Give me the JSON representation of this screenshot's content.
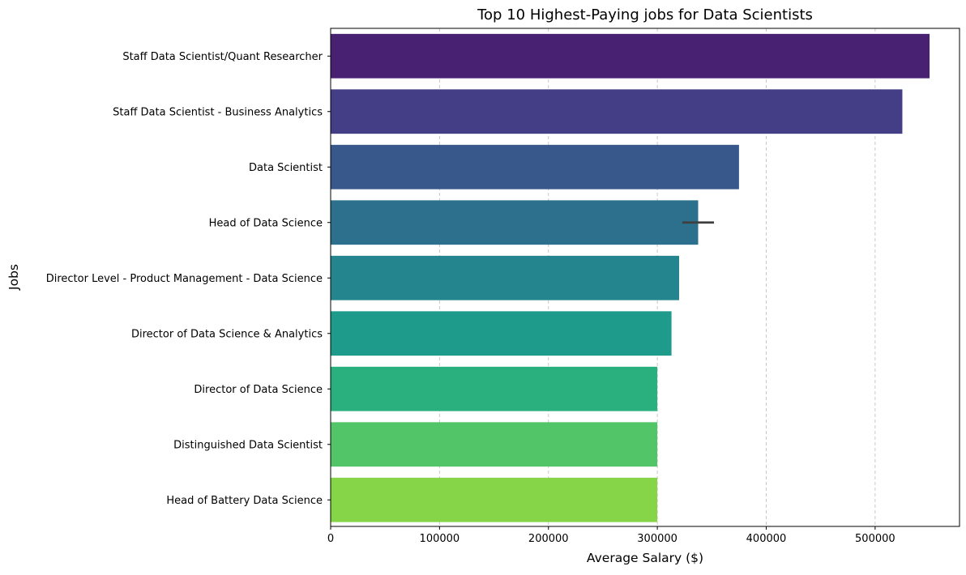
{
  "chart_data": {
    "type": "bar",
    "orientation": "horizontal",
    "title": "Top 10 Highest-Paying jobs for Data Scientists",
    "xlabel": "Average Salary ($)",
    "ylabel": "Jobs",
    "xlim": [
      0,
      577500
    ],
    "xticks": [
      0,
      100000,
      200000,
      300000,
      400000,
      500000
    ],
    "xtick_labels": [
      "0",
      "100000",
      "200000",
      "300000",
      "400000",
      "500000"
    ],
    "grid": {
      "axis": "x",
      "style": "dashed"
    },
    "categories": [
      "Staff Data Scientist/Quant Researcher",
      "Staff Data Scientist - Business Analytics",
      "Data Scientist",
      "Head of Data Science",
      "Director Level - Product Management - Data Science",
      "Director of Data Science & Analytics",
      "Director of Data Science",
      "Distinguished Data Scientist",
      "Head of Battery Data Science"
    ],
    "values": [
      550000,
      525000,
      375000,
      337500,
      320000,
      313000,
      300000,
      300000,
      300000
    ],
    "error_bars": [
      null,
      null,
      null,
      [
        323000,
        352000
      ],
      null,
      null,
      null,
      null,
      null
    ],
    "colors": [
      "#482173",
      "#433e85",
      "#38588c",
      "#2d708e",
      "#25858e",
      "#1e9b8a",
      "#2ab07f",
      "#52c569",
      "#86d549"
    ],
    "extra_color": "#b0d32e"
  }
}
